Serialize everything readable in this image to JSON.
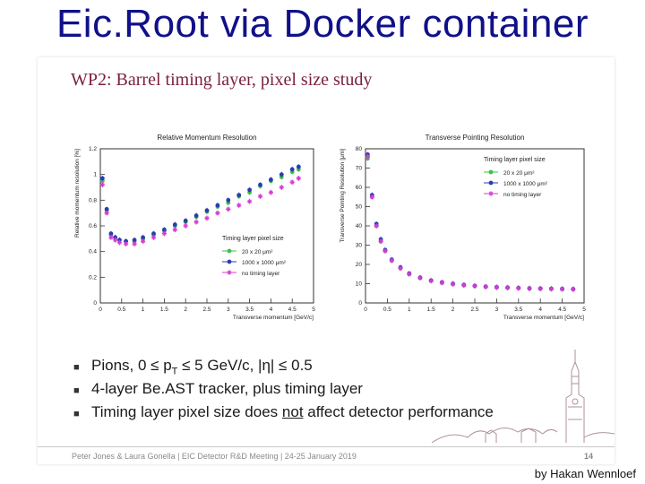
{
  "page": {
    "title": "Eic.Root via Docker container",
    "credit": "by Hakan Wennloef"
  },
  "slide": {
    "heading": "WP2: Barrel timing layer, pixel size study",
    "bullets": [
      {
        "pre": "Pions, 0 ≤ p",
        "sub": "T",
        "post": " ≤ 5 GeV/c, |η| ≤ 0.5"
      },
      {
        "pre": "4-layer Be.AST tracker, plus timing layer",
        "sub": "",
        "post": ""
      },
      {
        "pre": "Timing layer pixel size does ",
        "underline": "not",
        "post": " affect detector performance"
      }
    ],
    "bullet_mark": "■",
    "footer": "Peter Jones & Laura Gonella | EIC Detector R&D Meeting | 24-25 January 2019",
    "page_number": "14"
  },
  "chart_data": [
    {
      "type": "scatter",
      "title": "Relative Momentum Resolution",
      "xlabel": "Transverse momentum [GeV/c]",
      "ylabel": "Relative momentum resolution [%]",
      "xlim": [
        0,
        5
      ],
      "ylim": [
        0,
        1.2
      ],
      "xticks": [
        "0",
        "0.5",
        "1",
        "1.5",
        "2",
        "2.5",
        "3",
        "3.5",
        "4",
        "4.5",
        "5"
      ],
      "yticks": [
        "0",
        "0.2",
        "0.4",
        "0.6",
        "0.8",
        "1",
        "1.2"
      ],
      "legend_title": "Timing layer pixel size",
      "legend_position": "bottom-right",
      "series": [
        {
          "name": "20 x 20 μm²",
          "color": "#3cc24a",
          "marker": "circle",
          "x": [
            0.05,
            0.15,
            0.25,
            0.35,
            0.45,
            0.6,
            0.8,
            1.0,
            1.25,
            1.5,
            1.75,
            2.0,
            2.25,
            2.5,
            2.75,
            3.0,
            3.25,
            3.5,
            3.75,
            4.0,
            4.25,
            4.5,
            4.65
          ],
          "y": [
            0.95,
            0.72,
            0.53,
            0.51,
            0.49,
            0.48,
            0.48,
            0.5,
            0.53,
            0.56,
            0.6,
            0.63,
            0.67,
            0.71,
            0.75,
            0.78,
            0.83,
            0.86,
            0.91,
            0.95,
            0.98,
            1.02,
            1.04
          ]
        },
        {
          "name": "1000 x 1000 μm²",
          "color": "#2a3db0",
          "marker": "circle",
          "x": [
            0.05,
            0.15,
            0.25,
            0.35,
            0.45,
            0.6,
            0.8,
            1.0,
            1.25,
            1.5,
            1.75,
            2.0,
            2.25,
            2.5,
            2.75,
            3.0,
            3.25,
            3.5,
            3.75,
            4.0,
            4.25,
            4.5,
            4.65
          ],
          "y": [
            0.97,
            0.73,
            0.54,
            0.51,
            0.49,
            0.48,
            0.49,
            0.51,
            0.54,
            0.57,
            0.61,
            0.64,
            0.68,
            0.72,
            0.76,
            0.8,
            0.84,
            0.88,
            0.92,
            0.96,
            1.0,
            1.04,
            1.06
          ]
        },
        {
          "name": "no timing layer",
          "color": "#d63cd6",
          "marker": "star",
          "x": [
            0.05,
            0.15,
            0.25,
            0.35,
            0.45,
            0.6,
            0.8,
            1.0,
            1.25,
            1.5,
            1.75,
            2.0,
            2.25,
            2.5,
            2.75,
            3.0,
            3.25,
            3.5,
            3.75,
            4.0,
            4.25,
            4.5,
            4.65
          ],
          "y": [
            0.92,
            0.7,
            0.51,
            0.49,
            0.47,
            0.46,
            0.46,
            0.48,
            0.51,
            0.54,
            0.57,
            0.6,
            0.63,
            0.66,
            0.7,
            0.73,
            0.76,
            0.79,
            0.83,
            0.86,
            0.9,
            0.94,
            0.97
          ]
        }
      ]
    },
    {
      "type": "scatter",
      "title": "Transverse Pointing Resolution",
      "xlabel": "Transverse momentum [GeV/c]",
      "ylabel": "Transverse Pointing Resolution [μm]",
      "xlim": [
        0,
        5
      ],
      "ylim": [
        0,
        80
      ],
      "xticks": [
        "0",
        "0.5",
        "1",
        "1.5",
        "2",
        "2.5",
        "3",
        "3.5",
        "4",
        "4.5",
        "5"
      ],
      "yticks": [
        "0",
        "10",
        "20",
        "30",
        "40",
        "50",
        "60",
        "70",
        "80"
      ],
      "legend_title": "Timing layer pixel size",
      "legend_position": "top-right",
      "series": [
        {
          "name": "20 x 20 μm²",
          "color": "#3cc24a",
          "marker": "circle",
          "x": [
            0.05,
            0.15,
            0.25,
            0.35,
            0.45,
            0.6,
            0.8,
            1.0,
            1.25,
            1.5,
            1.75,
            2.0,
            2.25,
            2.5,
            2.75,
            3.0,
            3.25,
            3.5,
            3.75,
            4.0,
            4.25,
            4.5,
            4.75
          ],
          "y": [
            75,
            55,
            40,
            32,
            27,
            22,
            18,
            15,
            13,
            11.5,
            10.5,
            9.8,
            9.2,
            8.8,
            8.4,
            8.1,
            7.9,
            7.7,
            7.5,
            7.4,
            7.3,
            7.2,
            7.1
          ]
        },
        {
          "name": "1000 x 1000 μm²",
          "color": "#2a3db0",
          "marker": "circle",
          "x": [
            0.05,
            0.15,
            0.25,
            0.35,
            0.45,
            0.6,
            0.8,
            1.0,
            1.25,
            1.5,
            1.75,
            2.0,
            2.25,
            2.5,
            2.75,
            3.0,
            3.25,
            3.5,
            3.75,
            4.0,
            4.25,
            4.5,
            4.75
          ],
          "y": [
            77,
            56,
            41,
            33,
            27.5,
            22.5,
            18.5,
            15.3,
            13.2,
            11.7,
            10.7,
            10,
            9.4,
            8.9,
            8.5,
            8.2,
            8,
            7.8,
            7.6,
            7.5,
            7.4,
            7.3,
            7.2
          ]
        },
        {
          "name": "no timing layer",
          "color": "#d63cd6",
          "marker": "star",
          "x": [
            0.05,
            0.15,
            0.25,
            0.35,
            0.45,
            0.6,
            0.8,
            1.0,
            1.25,
            1.5,
            1.75,
            2.0,
            2.25,
            2.5,
            2.75,
            3.0,
            3.25,
            3.5,
            3.75,
            4.0,
            4.25,
            4.5,
            4.75
          ],
          "y": [
            76,
            55,
            40,
            32,
            27,
            22,
            18,
            15,
            13,
            11.5,
            10.5,
            9.8,
            9.2,
            8.8,
            8.4,
            8.1,
            7.9,
            7.7,
            7.5,
            7.4,
            7.3,
            7.2,
            7.1
          ]
        }
      ]
    }
  ]
}
